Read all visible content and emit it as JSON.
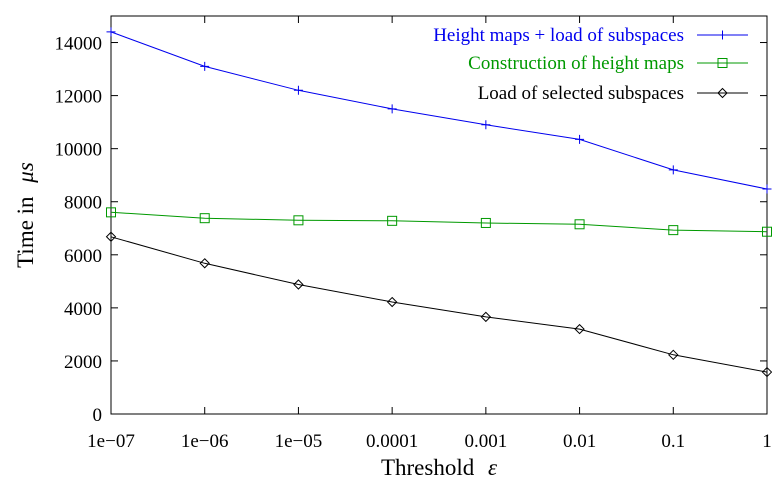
{
  "chart_data": {
    "type": "line",
    "x_scale": "log",
    "x": [
      1e-07,
      1e-06,
      1e-05,
      0.0001,
      0.001,
      0.01,
      0.1,
      1
    ],
    "x_tick_labels": [
      "1e−07",
      "1e−06",
      "1e−05",
      "0.0001",
      "0.001",
      "0.01",
      "0.1",
      "1"
    ],
    "y_ticks": [
      0,
      2000,
      4000,
      6000,
      8000,
      10000,
      12000,
      14000
    ],
    "y_tick_labels": [
      "0",
      "2000",
      "4000",
      "6000",
      "8000",
      "10000",
      "12000",
      "14000"
    ],
    "ylim": [
      0,
      15000
    ],
    "xlabel": "Threshold",
    "xlabel_symbol": "ε",
    "ylabel": "Time in",
    "ylabel_symbol": "μs",
    "grid": false,
    "legend_position": "top-right",
    "series": [
      {
        "name": "Height maps + load of subspaces",
        "color": "#0000ee",
        "marker": "plus",
        "values": [
          14400,
          13100,
          12200,
          11500,
          10900,
          10350,
          9200,
          8480
        ]
      },
      {
        "name": "Construction of height maps",
        "color": "#009900",
        "marker": "square",
        "values": [
          7600,
          7380,
          7300,
          7280,
          7200,
          7150,
          6930,
          6870
        ]
      },
      {
        "name": "Load of selected subspaces",
        "color": "#000000",
        "marker": "diamond",
        "values": [
          6680,
          5680,
          4880,
          4220,
          3660,
          3200,
          2230,
          1580
        ]
      }
    ]
  }
}
